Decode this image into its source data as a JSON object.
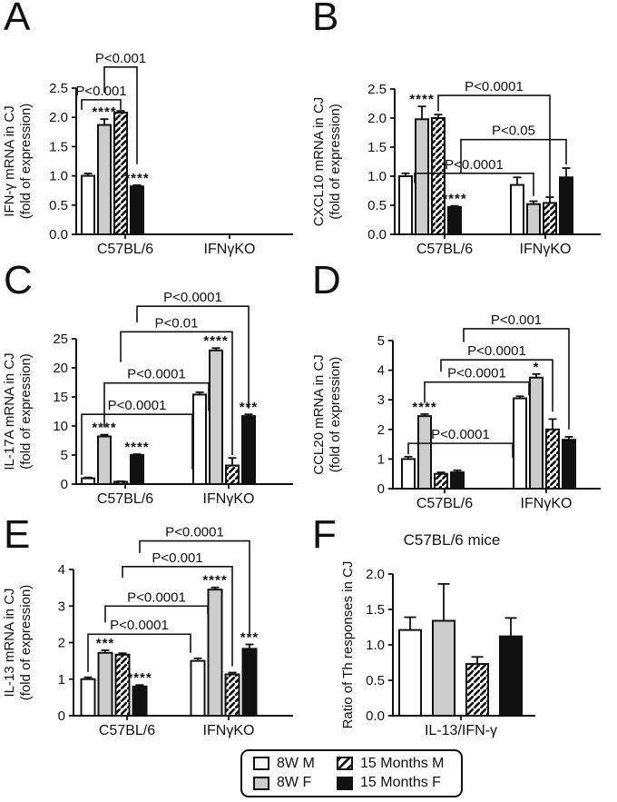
{
  "legend": {
    "items": [
      {
        "label": "8W M",
        "swatch": "white"
      },
      {
        "label": "8W F",
        "swatch": "gray"
      },
      {
        "label": "15 Months M",
        "swatch": "hatch"
      },
      {
        "label": "15 Months F",
        "swatch": "black"
      }
    ]
  },
  "colors": {
    "bar_white": "#ffffff",
    "bar_gray": "#cccccc",
    "bar_black": "#111111",
    "outline": "#111111",
    "text": "#111111"
  },
  "chart_data": [
    {
      "panel_label": "A",
      "type": "bar",
      "title": "",
      "ylabel": [
        "IFN-γ mRNA in CJ",
        "(fold of expression)"
      ],
      "ylim": [
        0,
        2.5
      ],
      "ytick_step": 0.5,
      "ytick_decimals": 1,
      "categories": [
        "C57BL/6",
        "IFNγKO"
      ],
      "series": [
        {
          "name": "8W M",
          "values": [
            1.0,
            0
          ],
          "errors": [
            0.04,
            0
          ]
        },
        {
          "name": "8W F",
          "values": [
            1.87,
            0
          ],
          "errors": [
            0.1,
            0
          ]
        },
        {
          "name": "15 Months M",
          "values": [
            2.08,
            0
          ],
          "errors": [
            0.03,
            0
          ]
        },
        {
          "name": "15 Months F",
          "values": [
            0.82,
            0
          ],
          "errors": [
            0.02,
            0
          ]
        }
      ],
      "stars": [
        {
          "group": 0,
          "series": 1,
          "text": "****"
        },
        {
          "group": 0,
          "series": 3,
          "text": "****"
        }
      ],
      "brackets": [
        {
          "label": "P<0.001",
          "g1": 0,
          "s1": 0,
          "g2": 0,
          "s2": 2,
          "y": 2.3,
          "e1": 2.13,
          "e2": 2.13,
          "dx1": -7,
          "dx2": 0
        },
        {
          "label": "P<0.001",
          "g1": 0,
          "s1": 1,
          "g2": 0,
          "s2": 3,
          "y": 2.86,
          "e1": 2.42,
          "e2": 1.2,
          "dx1": 0,
          "dx2": 0
        }
      ]
    },
    {
      "panel_label": "B",
      "type": "bar",
      "title": "",
      "ylabel": [
        "CXCL10 mRNA in CJ",
        "(fold of expression)"
      ],
      "ylim": [
        0,
        2.5
      ],
      "ytick_step": 0.5,
      "ytick_decimals": 1,
      "categories": [
        "C57BL/6",
        "IFNγKO"
      ],
      "series": [
        {
          "name": "8W M",
          "values": [
            1.0,
            0.85
          ],
          "errors": [
            0.05,
            0.13
          ]
        },
        {
          "name": "8W F",
          "values": [
            1.98,
            0.52
          ],
          "errors": [
            0.22,
            0.05
          ]
        },
        {
          "name": "15 Months M",
          "values": [
            2.0,
            0.54
          ],
          "errors": [
            0.06,
            0.1
          ]
        },
        {
          "name": "15 Months F",
          "values": [
            0.47,
            0.98
          ],
          "errors": [
            0.02,
            0.16
          ]
        }
      ],
      "stars": [
        {
          "group": 0,
          "series": 1,
          "text": "****"
        },
        {
          "group": 0,
          "series": 3,
          "text": "****"
        }
      ],
      "brackets": [
        {
          "label": "P<0.0001",
          "g1": 0,
          "s1": 2,
          "g2": 1,
          "s2": 2,
          "y": 2.39,
          "e1": 2.12,
          "e2": 0.65,
          "dx1": 0,
          "dx2": 0
        },
        {
          "label": "P<0.05",
          "g1": 0,
          "s1": 3,
          "g2": 1,
          "s2": 3,
          "y": 1.63,
          "e1": 1.05,
          "e2": 1.2,
          "dx1": 7,
          "dx2": 0
        },
        {
          "label": "P<0.0001",
          "g1": 0,
          "s1": 1,
          "g2": 1,
          "s2": 1,
          "y": 1.05,
          "e1": 0.88,
          "e2": 0.66,
          "dx1": -8,
          "dx2": 0
        }
      ]
    },
    {
      "panel_label": "C",
      "type": "bar",
      "title": "",
      "ylabel": [
        "IL-17A mRNA in CJ",
        "(fold of expression)"
      ],
      "ylim": [
        0,
        25
      ],
      "ytick_step": 5,
      "ytick_decimals": 0,
      "categories": [
        "C57BL/6",
        "IFNγKO"
      ],
      "series": [
        {
          "name": "8W M",
          "values": [
            1.0,
            15.4
          ],
          "errors": [
            0.15,
            0.4
          ]
        },
        {
          "name": "8W F",
          "values": [
            8.2,
            23.0
          ],
          "errors": [
            0.3,
            0.4
          ]
        },
        {
          "name": "15 Months M",
          "values": [
            0.4,
            3.2
          ],
          "errors": [
            0.1,
            1.3
          ]
        },
        {
          "name": "15 Months F",
          "values": [
            5.0,
            11.7
          ],
          "errors": [
            0.15,
            0.3
          ]
        }
      ],
      "stars": [
        {
          "group": 0,
          "series": 1,
          "text": "****"
        },
        {
          "group": 0,
          "series": 3,
          "text": "****"
        },
        {
          "group": 1,
          "series": 1,
          "text": "****"
        },
        {
          "group": 1,
          "series": 3,
          "text": "***"
        }
      ],
      "brackets": [
        {
          "label": "P<0.0001",
          "g1": 0,
          "s1": 0,
          "g2": 1,
          "s2": 0,
          "y": 12,
          "e1": 1.6,
          "e2": 2.6,
          "dx1": -7,
          "dx2": -8
        },
        {
          "label": "P<0.0001",
          "g1": 0,
          "s1": 1,
          "g2": 1,
          "s2": 1,
          "y": 17.4,
          "e1": 9.8,
          "e2": 12.6,
          "dx1": 0,
          "dx2": -8
        },
        {
          "label": "P<0.01",
          "g1": 0,
          "s1": 2,
          "g2": 1,
          "s2": 2,
          "y": 26.2,
          "e1": 21,
          "e2": 5,
          "dx1": 0,
          "dx2": 0
        },
        {
          "label": "P<0.0001",
          "g1": 0,
          "s1": 3,
          "g2": 1,
          "s2": 3,
          "y": 30.6,
          "e1": 27.8,
          "e2": 13,
          "dx1": 0,
          "dx2": 0
        }
      ]
    },
    {
      "panel_label": "D",
      "type": "bar",
      "title": "",
      "ylabel": [
        "CCL20 mRNA in CJ",
        "(fold of expression)"
      ],
      "ylim": [
        0,
        5
      ],
      "ytick_step": 1,
      "ytick_decimals": 0,
      "categories": [
        "C57BL/6",
        "IFNγKO"
      ],
      "series": [
        {
          "name": "8W M",
          "values": [
            1.0,
            3.05
          ],
          "errors": [
            0.08,
            0.07
          ]
        },
        {
          "name": "8W F",
          "values": [
            2.45,
            3.75
          ],
          "errors": [
            0.07,
            0.12
          ]
        },
        {
          "name": "15 Months M",
          "values": [
            0.5,
            2.0
          ],
          "errors": [
            0.05,
            0.35
          ]
        },
        {
          "name": "15 Months F",
          "values": [
            0.55,
            1.65
          ],
          "errors": [
            0.07,
            0.1
          ]
        }
      ],
      "stars": [
        {
          "group": 0,
          "series": 1,
          "text": "****"
        },
        {
          "group": 1,
          "series": 1,
          "text": "*"
        }
      ],
      "brackets": [
        {
          "label": "P<0.0001",
          "g1": 0,
          "s1": 0,
          "g2": 1,
          "s2": 0,
          "y": 1.53,
          "e1": 1.16,
          "e2": 1.05,
          "dx1": 0,
          "dx2": -8
        },
        {
          "label": "P<0.0001",
          "g1": 0,
          "s1": 1,
          "g2": 1,
          "s2": 1,
          "y": 3.6,
          "e1": 2.9,
          "e2": 3.15,
          "dx1": 0,
          "dx2": -8
        },
        {
          "label": "P<0.0001",
          "g1": 0,
          "s1": 2,
          "g2": 1,
          "s2": 2,
          "y": 4.35,
          "e1": 3.95,
          "e2": 2.6,
          "dx1": 0,
          "dx2": 0
        },
        {
          "label": "P<0.001",
          "g1": 0,
          "s1": 3,
          "g2": 1,
          "s2": 3,
          "y": 5.4,
          "e1": 4.95,
          "e2": 2.0,
          "dx1": 7,
          "dx2": 0
        }
      ]
    },
    {
      "panel_label": "E",
      "type": "bar",
      "title": "",
      "ylabel": [
        "IL-13 mRNA in CJ",
        "(fold of expression)"
      ],
      "ylim": [
        0,
        4
      ],
      "ytick_step": 1,
      "ytick_decimals": 0,
      "categories": [
        "C57BL/6",
        "IFNγKO"
      ],
      "series": [
        {
          "name": "8W M",
          "values": [
            1.0,
            1.5
          ],
          "errors": [
            0.05,
            0.07
          ]
        },
        {
          "name": "8W F",
          "values": [
            1.72,
            3.45
          ],
          "errors": [
            0.07,
            0.06
          ]
        },
        {
          "name": "15 Months M",
          "values": [
            1.67,
            1.13
          ],
          "errors": [
            0.04,
            0.05
          ]
        },
        {
          "name": "15 Months F",
          "values": [
            0.8,
            1.83
          ],
          "errors": [
            0.04,
            0.12
          ]
        }
      ],
      "stars": [
        {
          "group": 0,
          "series": 1,
          "text": "***"
        },
        {
          "group": 0,
          "series": 3,
          "text": "****"
        },
        {
          "group": 1,
          "series": 1,
          "text": "****"
        },
        {
          "group": 1,
          "series": 3,
          "text": "***"
        }
      ],
      "brackets": [
        {
          "label": "P<0.0001",
          "g1": 0,
          "s1": 0,
          "g2": 1,
          "s2": 0,
          "y": 2.23,
          "e1": 1.2,
          "e2": 1.72,
          "dx1": 0,
          "dx2": -8
        },
        {
          "label": "P<0.0001",
          "g1": 0,
          "s1": 1,
          "g2": 1,
          "s2": 1,
          "y": 3.0,
          "e1": 2.55,
          "e2": 2.78,
          "dx1": 0,
          "dx2": -8
        },
        {
          "label": "P<0.001",
          "g1": 0,
          "s1": 2,
          "g2": 1,
          "s2": 2,
          "y": 4.08,
          "e1": 3.78,
          "e2": 1.35,
          "dx1": 0,
          "dx2": 0
        },
        {
          "label": "P<0.0001",
          "g1": 0,
          "s1": 3,
          "g2": 1,
          "s2": 3,
          "y": 4.78,
          "e1": 4.45,
          "e2": 2.25,
          "dx1": 0,
          "dx2": 0
        }
      ]
    },
    {
      "panel_label": "F",
      "type": "bar",
      "title": "C57BL/6 mice",
      "ylabel": [
        "Ratio of Th responses in CJ"
      ],
      "ylim": [
        0,
        2.0
      ],
      "ytick_step": 0.5,
      "ytick_decimals": 1,
      "categories": [
        "IL-13/IFN-γ"
      ],
      "series": [
        {
          "name": "8W M",
          "values": [
            1.21
          ],
          "errors": [
            0.18
          ]
        },
        {
          "name": "8W F",
          "values": [
            1.34
          ],
          "errors": [
            0.52
          ]
        },
        {
          "name": "15 Months M",
          "values": [
            0.73
          ],
          "errors": [
            0.1
          ]
        },
        {
          "name": "15 Months F",
          "values": [
            1.12
          ],
          "errors": [
            0.26
          ]
        }
      ],
      "stars": [],
      "brackets": []
    }
  ]
}
